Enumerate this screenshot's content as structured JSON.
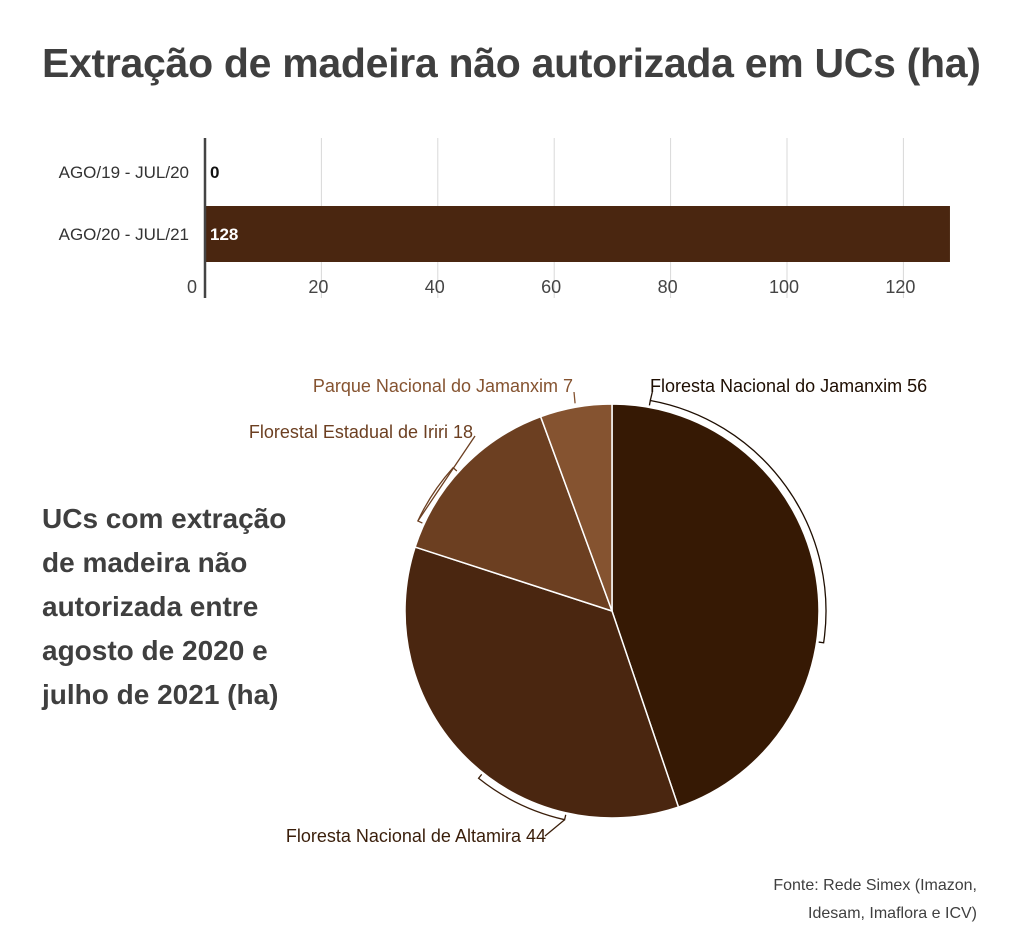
{
  "title": "Extração de madeira não autorizada em UCs (ha)",
  "source": {
    "line1": "Fonte: Rede Simex (Imazon,",
    "line2": "Idesam, Imaflora e ICV)"
  },
  "chart_data": [
    {
      "type": "bar",
      "orientation": "horizontal",
      "title": "Extração de madeira não autorizada em UCs (ha)",
      "categories": [
        "AGO/19 - JUL/20",
        "AGO/20 - JUL/21"
      ],
      "values": [
        0,
        128
      ],
      "value_labels": [
        "0",
        "128"
      ],
      "xlim": [
        0,
        128
      ],
      "x_ticks": [
        0,
        20,
        40,
        60,
        80,
        100,
        120
      ],
      "grid": true,
      "bar_color": "#4a2610"
    },
    {
      "type": "pie",
      "title": "UCs com extração de madeira não autorizada entre agosto de 2020 e julho de 2021 (ha)",
      "slices": [
        {
          "label": "Floresta Nacional do Jamanxim",
          "value": 56,
          "display": "Floresta Nacional do Jamanxim 56",
          "color": "#361904",
          "label_color": "#1e0e02",
          "label_side": "right"
        },
        {
          "label": "Floresta Nacional de Altamira",
          "value": 44,
          "display": "Floresta Nacional de Altamira 44",
          "color": "#4a2610",
          "label_color": "#3a1e0a",
          "label_side": "left"
        },
        {
          "label": "Florestal Estadual de Iriri",
          "value": 18,
          "display": "Florestal Estadual de Iriri 18",
          "color": "#6c3f21",
          "label_color": "#6c3f21",
          "label_side": "left"
        },
        {
          "label": "Parque Nacional do Jamanxim",
          "value": 7,
          "display": "Parque Nacional do Jamanxim 7",
          "color": "#855330",
          "label_color": "#855330",
          "label_side": "left"
        }
      ]
    }
  ]
}
